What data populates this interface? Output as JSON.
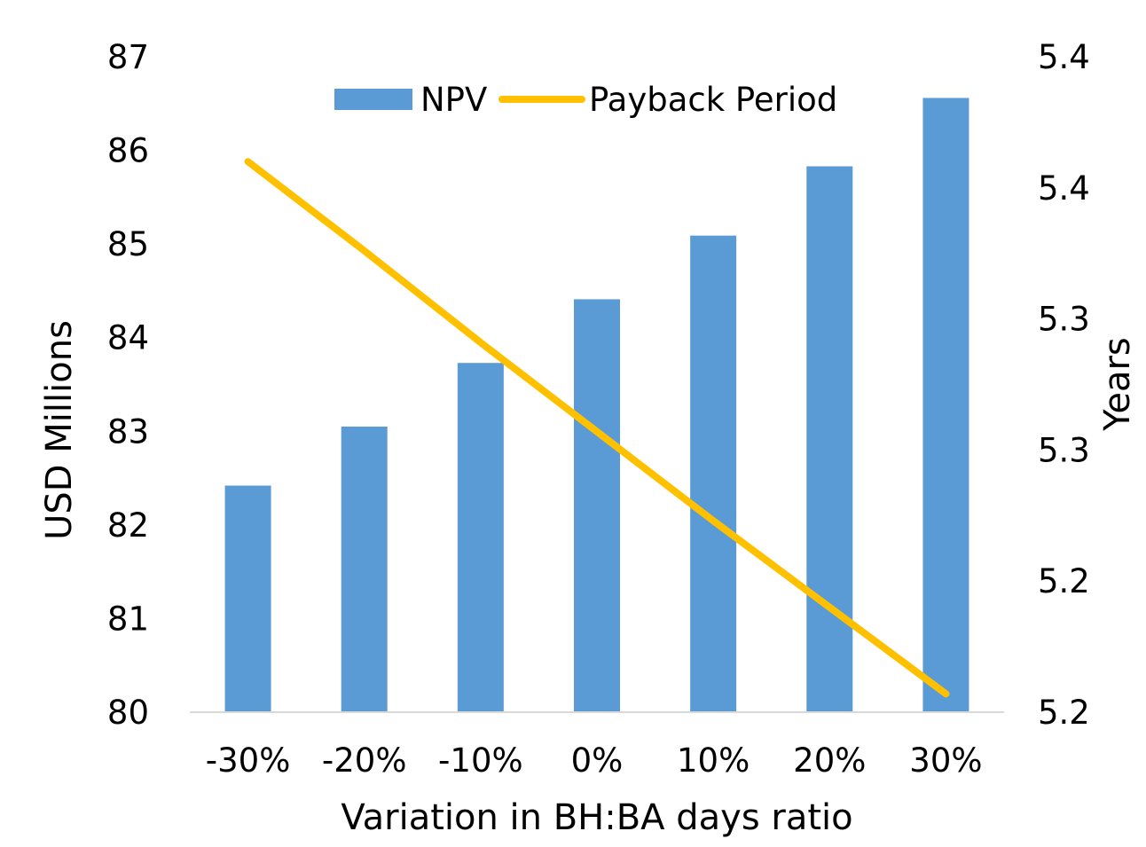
{
  "chart_data": {
    "type": "bar",
    "title": "",
    "xlabel": "Variation in BH:BA days ratio",
    "ylabel": "USD Millions",
    "y2label": "Years",
    "categories": [
      "-30%",
      "-20%",
      "-10%",
      "0%",
      "10%",
      "20%",
      "30%"
    ],
    "ylim": [
      80,
      87
    ],
    "yticks": [
      "80",
      "81",
      "82",
      "83",
      "84",
      "85",
      "86",
      "87"
    ],
    "y2lim": [
      5.2,
      5.45
    ],
    "y2ticks": [
      "5.2",
      "5.2",
      "5.3",
      "5.3",
      "5.4",
      "5.4"
    ],
    "legend_position": "top",
    "series": [
      {
        "name": "NPV",
        "kind": "bar",
        "axis": "left",
        "color": "#5b9bd5",
        "values": [
          82.42,
          83.05,
          83.73,
          84.41,
          85.09,
          85.83,
          86.56
        ]
      },
      {
        "name": "Payback Period",
        "kind": "line",
        "axis": "right",
        "color": "#ffc000",
        "values": [
          5.41,
          5.376,
          5.341,
          5.307,
          5.273,
          5.24,
          5.207
        ]
      }
    ]
  }
}
